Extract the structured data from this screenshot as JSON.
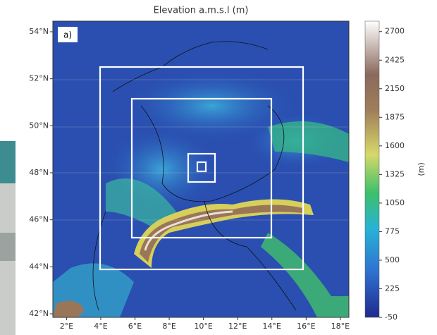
{
  "title": "Elevation a.m.s.l (m)",
  "panel_label": "a)",
  "map": {
    "lon_lim": [
      1.2,
      18.5
    ],
    "lat_lim": [
      41.85,
      54.45
    ],
    "lon_ticks": [
      {
        "value": 2,
        "label": "2°E"
      },
      {
        "value": 4,
        "label": "4°E"
      },
      {
        "value": 6,
        "label": "6°E"
      },
      {
        "value": 8,
        "label": "8°E"
      },
      {
        "value": 10,
        "label": "10°E"
      },
      {
        "value": 12,
        "label": "12°E"
      },
      {
        "value": 14,
        "label": "14°E"
      },
      {
        "value": 16,
        "label": "16°E"
      },
      {
        "value": 18,
        "label": "18°E"
      }
    ],
    "lat_ticks": [
      {
        "value": 42,
        "label": "42°N"
      },
      {
        "value": 44,
        "label": "44°N"
      },
      {
        "value": 46,
        "label": "46°N"
      },
      {
        "value": 48,
        "label": "48°N"
      },
      {
        "value": 50,
        "label": "50°N"
      },
      {
        "value": 52,
        "label": "52°N"
      },
      {
        "value": 54,
        "label": "54°N"
      }
    ]
  },
  "colorbar": {
    "label": "(m)",
    "lim": [
      -50,
      2800
    ],
    "ticks": [
      -50,
      225,
      500,
      775,
      1050,
      1325,
      1600,
      1875,
      2150,
      2425,
      2700
    ]
  }
}
